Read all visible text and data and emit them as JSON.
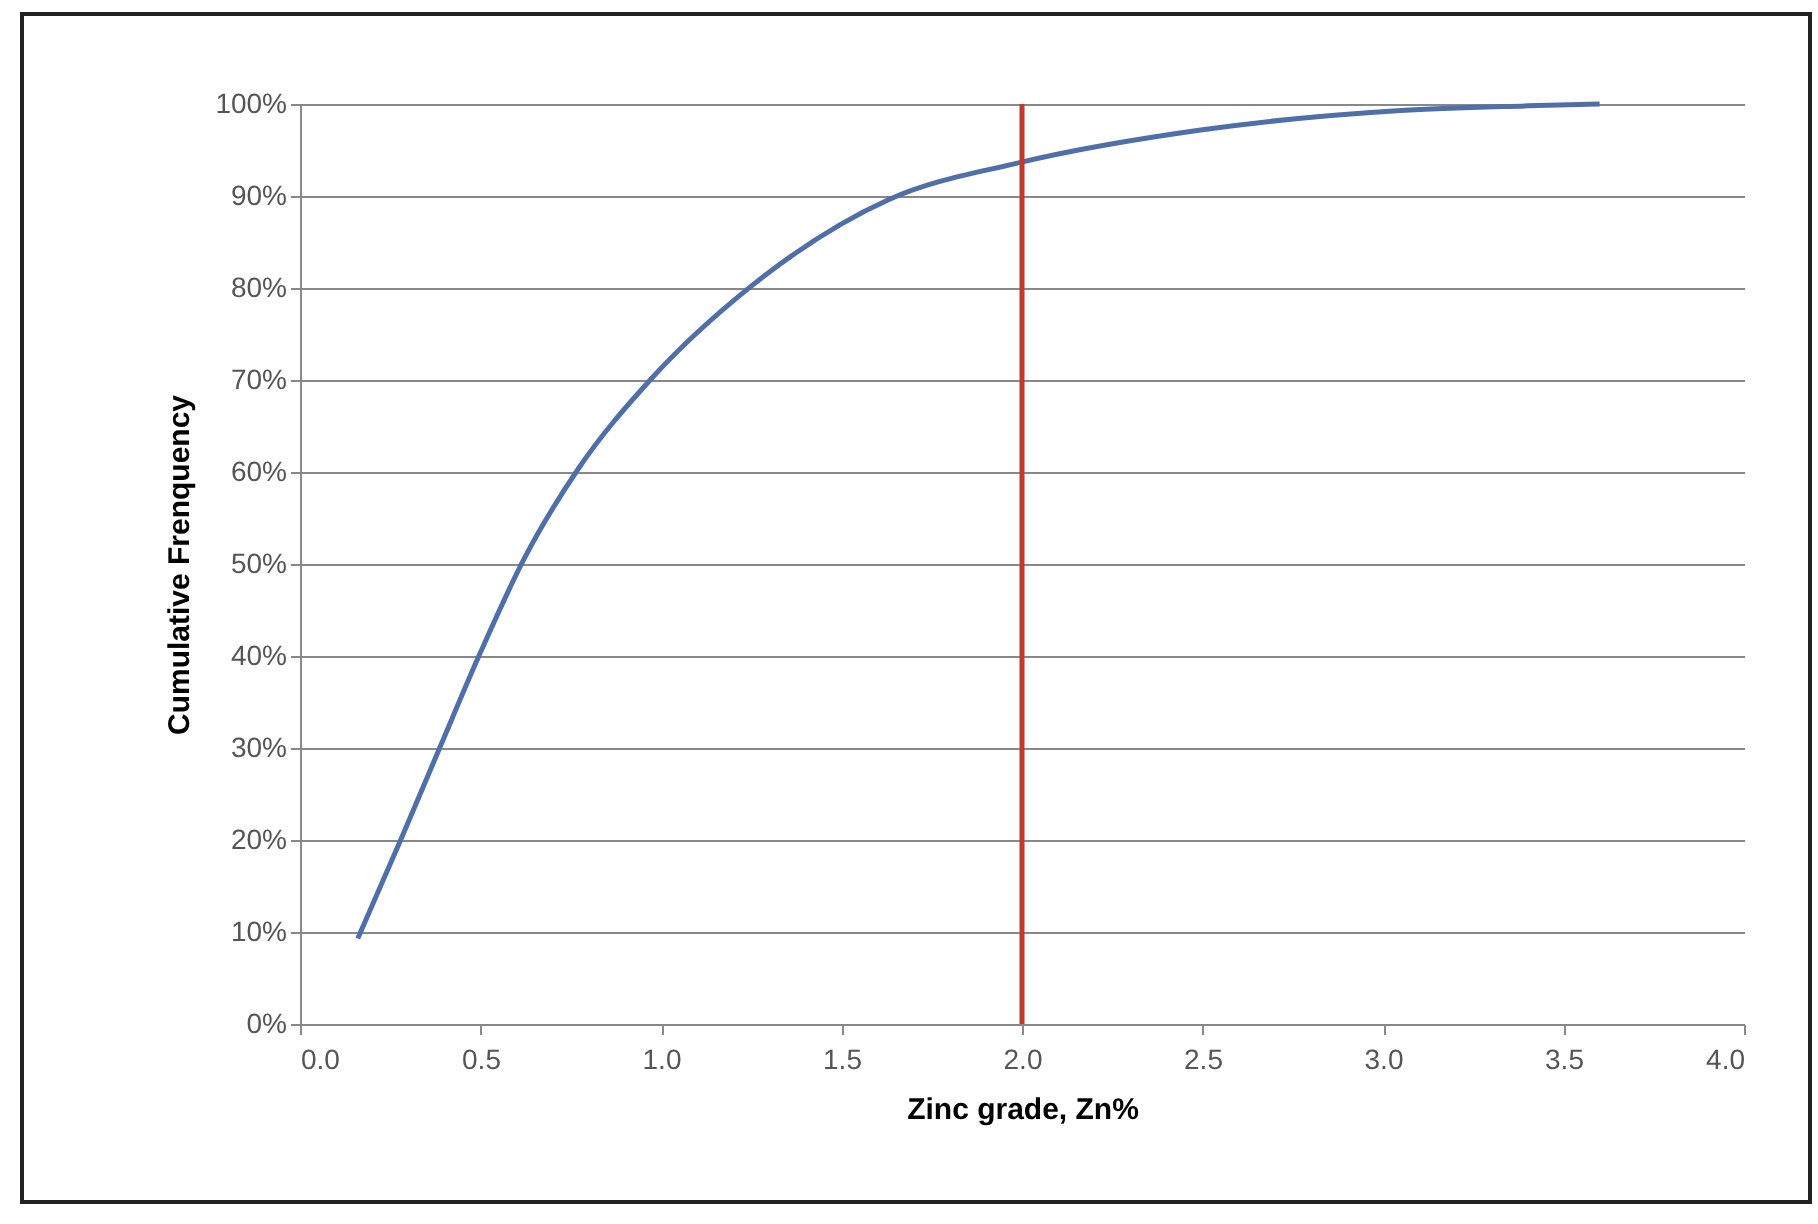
{
  "chart_data": {
    "type": "line",
    "xlabel": "Zinc grade, Zn%",
    "ylabel": "Cumulative Frenquency",
    "x": [
      0.16,
      0.28,
      0.39,
      0.5,
      0.62,
      0.77,
      0.97,
      1.25,
      1.63,
      1.99,
      2.5,
      3.05,
      3.4,
      3.6
    ],
    "series": [
      {
        "color": "#4f6fa8",
        "values": [
          9.3,
          20.1,
          30.3,
          40.4,
          50.5,
          60.3,
          70.0,
          80.2,
          89.6,
          93.6,
          97.2,
          99.3,
          99.8,
          100
        ]
      }
    ],
    "xlim": [
      0,
      4
    ],
    "xticks": [
      {
        "value": 0,
        "label": "0.0"
      },
      {
        "value": 0.5,
        "label": "0.5"
      },
      {
        "value": 1,
        "label": "1.0"
      },
      {
        "value": 1.5,
        "label": "1.5"
      },
      {
        "value": 2,
        "label": "2.0"
      },
      {
        "value": 2.5,
        "label": "2.5"
      },
      {
        "value": 3,
        "label": "3.0"
      },
      {
        "value": 3.5,
        "label": "3.5"
      },
      {
        "value": 4,
        "label": "4.0"
      }
    ],
    "ylim": [
      0,
      100
    ],
    "yticks": [
      {
        "value": 0,
        "label": "0%"
      },
      {
        "value": 10,
        "label": "10%"
      },
      {
        "value": 20,
        "label": "20%"
      },
      {
        "value": 30,
        "label": "30%"
      },
      {
        "value": 40,
        "label": "40%"
      },
      {
        "value": 50,
        "label": "50%"
      },
      {
        "value": 60,
        "label": "60%"
      },
      {
        "value": 70,
        "label": "70%"
      },
      {
        "value": 80,
        "label": "80%"
      },
      {
        "value": 90,
        "label": "90%"
      },
      {
        "value": 100,
        "label": "100%"
      }
    ],
    "ref_lines": [
      {
        "axis": "x",
        "value": 2,
        "color": "#c0392b"
      }
    ],
    "grid": "y",
    "marker": "none",
    "line_style": "solid"
  }
}
